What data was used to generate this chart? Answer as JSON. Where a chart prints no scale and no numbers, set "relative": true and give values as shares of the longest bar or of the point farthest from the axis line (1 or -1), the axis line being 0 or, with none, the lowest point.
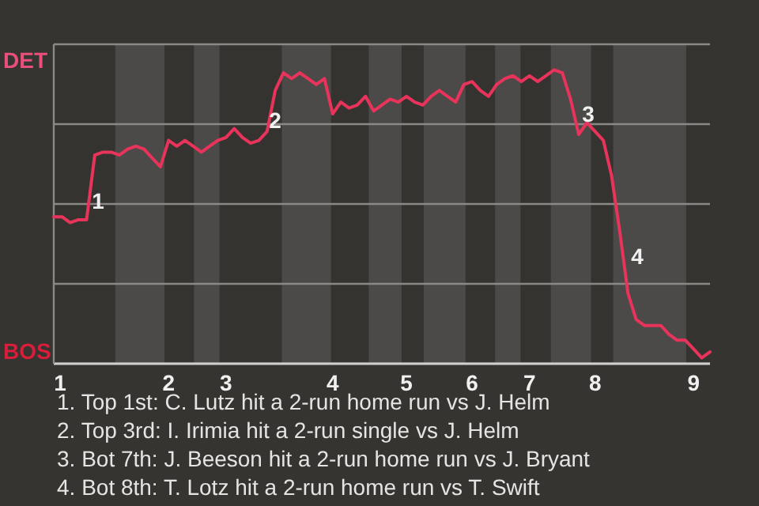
{
  "chart_data": {
    "type": "line",
    "relative": true,
    "categories": [
      "1",
      null,
      null,
      null,
      null,
      null,
      null,
      null,
      null,
      null,
      null,
      null,
      null,
      null,
      "2",
      null,
      null,
      null,
      null,
      null,
      null,
      "3",
      null,
      null,
      null,
      null,
      null,
      null,
      null,
      null,
      null,
      null,
      null,
      null,
      "4",
      null,
      null,
      null,
      null,
      null,
      null,
      null,
      null,
      "5",
      null,
      null,
      null,
      null,
      null,
      null,
      null,
      "6",
      null,
      null,
      null,
      null,
      null,
      null,
      "7",
      null,
      null,
      null,
      null,
      null,
      null,
      null,
      "8",
      null,
      null,
      null,
      null,
      null,
      null,
      null,
      null,
      null,
      null,
      null,
      "9",
      null,
      null
    ],
    "series": [
      {
        "color": "#e8335a",
        "values": [
          0.5,
          0.5,
          0.48,
          0.49,
          0.49,
          0.71,
          0.72,
          0.72,
          0.71,
          0.73,
          0.74,
          0.73,
          0.7,
          0.67,
          0.76,
          0.74,
          0.76,
          0.74,
          0.72,
          0.74,
          0.76,
          0.77,
          0.8,
          0.77,
          0.75,
          0.76,
          0.79,
          0.93,
          0.99,
          0.97,
          0.99,
          0.97,
          0.95,
          0.97,
          0.85,
          0.89,
          0.87,
          0.88,
          0.91,
          0.86,
          0.88,
          0.9,
          0.89,
          0.91,
          0.89,
          0.88,
          0.91,
          0.93,
          0.91,
          0.89,
          0.95,
          0.96,
          0.93,
          0.91,
          0.95,
          0.97,
          0.98,
          0.96,
          0.98,
          0.96,
          0.98,
          1,
          0.99,
          0.9,
          0.78,
          0.82,
          0.79,
          0.76,
          0.64,
          0.45,
          0.24,
          0.15,
          0.13,
          0.13,
          0.13,
          0.1,
          0.08,
          0.08,
          0.05,
          0.02,
          0.04
        ]
      }
    ],
    "grid": "y",
    "annotations": [
      "DET",
      "BOS",
      "1",
      "2",
      "3",
      "4",
      "1. Top 1st: C. Lutz hit a 2-run home run vs J. Helm",
      "2. Top 3rd: I. Irimia hit a 2-run single vs J. Helm",
      "3. Bot 7th: J. Beeson hit a 2-run home run vs J. Bryant",
      "4. Bot 8th: T. Lotz hit a 2-run home run vs T. Swift"
    ]
  }
}
